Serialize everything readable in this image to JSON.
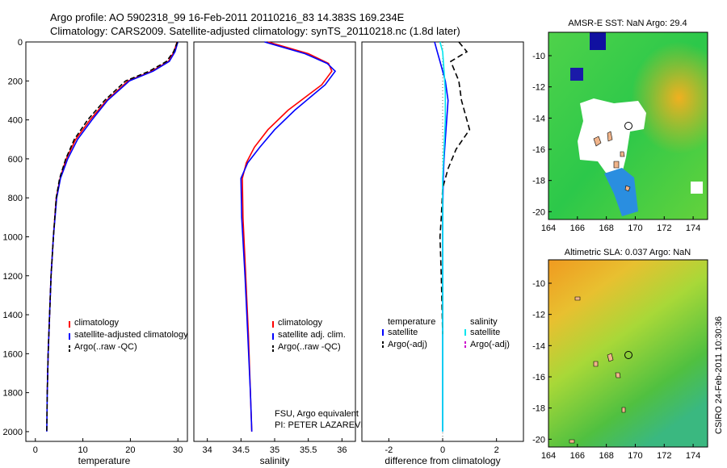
{
  "header": {
    "line1": "Argo profile: AO 5902318_99 16-Feb-2011 20110216_83 14.383S 169.234E",
    "line2": "Climatology: CARS2009. Satellite-adjusted climatology: synTS_20110218.nc (1.8d later)"
  },
  "side_label": "CSIRO 24-Feb-2011 10:30:36",
  "colors": {
    "climatology": "#ff0000",
    "satellite": "#0000ff",
    "argo": "#000000",
    "sat_salinity": "#00e5ee",
    "argo_adj_salinity": "#cc00cc"
  },
  "chart_data": [
    {
      "id": "temperature",
      "type": "line",
      "xlabel": "temperature",
      "ylabel": "",
      "xlim": [
        -2,
        32
      ],
      "ylim": [
        2050,
        0
      ],
      "xticks": [
        0,
        10,
        20,
        30
      ],
      "yticks": [
        0,
        200,
        400,
        600,
        800,
        1000,
        1200,
        1400,
        1600,
        1800,
        2000
      ],
      "legend": [
        "climatology",
        "satellite-adjusted climatology",
        "Argo(..raw -QC)"
      ],
      "series": [
        {
          "name": "climatology",
          "color": "#ff0000",
          "dash": "",
          "x": [
            29.8,
            29.2,
            28.0,
            24.5,
            19.5,
            15.0,
            11.5,
            8.5,
            6.5,
            5.2,
            4.4,
            3.8,
            3.3,
            3.0,
            2.7,
            2.5
          ],
          "y": [
            0,
            50,
            100,
            150,
            200,
            300,
            400,
            500,
            600,
            700,
            800,
            1000,
            1200,
            1400,
            1600,
            1800
          ]
        },
        {
          "name": "satellite-adjusted climatology",
          "color": "#0000ff",
          "dash": "",
          "x": [
            30.0,
            29.4,
            28.2,
            24.8,
            19.8,
            15.2,
            11.9,
            8.9,
            6.8,
            5.3,
            4.5,
            3.8,
            3.3,
            3.0,
            2.7,
            2.5,
            2.4
          ],
          "y": [
            0,
            50,
            100,
            150,
            200,
            300,
            400,
            500,
            600,
            700,
            800,
            1000,
            1200,
            1400,
            1600,
            1800,
            2000
          ]
        },
        {
          "name": "Argo(..raw -QC)",
          "color": "#000000",
          "dash": "6,3",
          "x": [
            29.9,
            29.1,
            27.6,
            24.0,
            19.0,
            14.6,
            11.0,
            8.2,
            6.4,
            5.1,
            4.4,
            3.8,
            3.3,
            3.0,
            2.7,
            2.5,
            2.4
          ],
          "y": [
            0,
            50,
            100,
            150,
            200,
            300,
            400,
            500,
            600,
            700,
            800,
            1000,
            1200,
            1400,
            1600,
            1800,
            2000
          ]
        }
      ]
    },
    {
      "id": "salinity",
      "type": "line",
      "xlabel": "salinity",
      "xlim": [
        33.8,
        36.2
      ],
      "ylim": [
        2050,
        0
      ],
      "xticks": [
        34,
        34.5,
        35,
        35.5,
        36
      ],
      "legend": [
        "climatology",
        "satellite adj. clim.",
        "Argo(..raw -QC)"
      ],
      "series": [
        {
          "name": "climatology",
          "color": "#ff0000",
          "dash": "",
          "x": [
            34.9,
            35.1,
            35.5,
            35.8,
            35.85,
            35.7,
            35.2,
            34.9,
            34.7,
            34.58,
            34.52,
            34.53,
            34.57,
            34.61,
            34.64,
            34.66
          ],
          "y": [
            0,
            20,
            60,
            110,
            150,
            220,
            350,
            450,
            540,
            620,
            700,
            900,
            1200,
            1500,
            1800,
            2000
          ]
        },
        {
          "name": "satellite adj. clim.",
          "color": "#0000ff",
          "dash": "",
          "x": [
            34.85,
            35.05,
            35.45,
            35.78,
            35.9,
            35.75,
            35.3,
            35.0,
            34.78,
            34.6,
            34.5,
            34.51,
            34.56,
            34.6,
            34.64,
            34.66
          ],
          "y": [
            0,
            20,
            60,
            110,
            150,
            220,
            350,
            450,
            540,
            620,
            700,
            900,
            1200,
            1500,
            1800,
            2000
          ]
        }
      ],
      "annotations": [
        "FSU, Argo equivalent",
        "PI: PETER LAZAREVICH"
      ]
    },
    {
      "id": "difference",
      "type": "line",
      "xlabel": "difference from climatology",
      "xlim": [
        -3,
        3
      ],
      "ylim": [
        2050,
        0
      ],
      "xticks": [
        -2,
        0,
        2
      ],
      "legend_groups": {
        "temperature": [
          "satellite",
          "Argo(-adj)"
        ],
        "salinity": [
          "satellite",
          "Argo(-adj)"
        ]
      },
      "series": [
        {
          "name": "temperature satellite",
          "color": "#0000ff",
          "dash": "",
          "x": [
            -0.3,
            -0.2,
            -0.1,
            0.1,
            0.2,
            0.15,
            0.1,
            0.05,
            0.02,
            0.0,
            0.0,
            0.0,
            0.0
          ],
          "y": [
            0,
            50,
            100,
            200,
            300,
            400,
            500,
            600,
            700,
            900,
            1200,
            1600,
            2000
          ]
        },
        {
          "name": "temperature Argo(-adj)",
          "color": "#000000",
          "dash": "7,4",
          "x": [
            0.6,
            0.9,
            0.3,
            0.6,
            0.7,
            1.0,
            0.5,
            0.2,
            0.0,
            -0.05,
            -0.1,
            -0.05,
            0.0
          ],
          "y": [
            0,
            50,
            100,
            200,
            300,
            450,
            550,
            650,
            750,
            900,
            1000,
            1200,
            1500
          ]
        },
        {
          "name": "salinity satellite",
          "color": "#00e5ee",
          "dash": "",
          "x": [
            -0.1,
            0.0,
            0.05,
            0.1,
            0.1,
            0.05,
            0.0,
            0.0,
            0.0,
            0.0,
            0.0,
            0.0
          ],
          "y": [
            0,
            50,
            150,
            250,
            400,
            550,
            700,
            900,
            1200,
            1500,
            1800,
            2000
          ]
        }
      ]
    },
    {
      "id": "sst_map",
      "type": "heatmap",
      "title": "AMSR-E SST: NaN Argo: 29.4",
      "xlim": [
        164,
        175
      ],
      "ylim": [
        -20.5,
        -8.5
      ],
      "xticks": [
        164,
        166,
        168,
        170,
        172,
        174
      ],
      "yticks": [
        -10,
        -12,
        -14,
        -16,
        -18,
        -20
      ],
      "marker": {
        "lon": 169.234,
        "lat": -14.383
      }
    },
    {
      "id": "sla_map",
      "type": "heatmap",
      "title": "Altimetric SLA: 0.037 Argo: NaN",
      "xlim": [
        164,
        175
      ],
      "ylim": [
        -20.5,
        -8.5
      ],
      "xticks": [
        164,
        166,
        168,
        170,
        172,
        174
      ],
      "yticks": [
        -10,
        -12,
        -14,
        -16,
        -18,
        -20
      ],
      "marker": {
        "lon": 169.234,
        "lat": -14.383
      }
    }
  ],
  "legend_titles": {
    "temperature": "temperature",
    "salinity": "salinity"
  }
}
